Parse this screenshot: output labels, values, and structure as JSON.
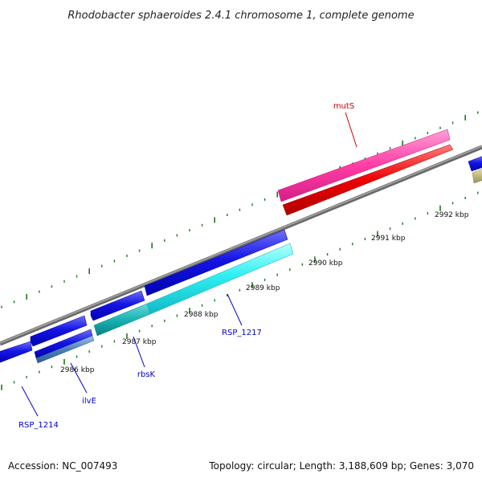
{
  "title": "Rhodobacter sphaeroides 2.4.1 chromosome 1, complete genome",
  "kbp_labels": [
    "2986 kbp",
    "2987 kbp",
    "2988 kbp",
    "2989 kbp",
    "2990 kbp",
    "2991 kbp",
    "2992 kbp"
  ],
  "gene_labels": [
    {
      "text": "mutS",
      "color": "#cc0000"
    },
    {
      "text": "RSP_1217",
      "color": "#0000cc"
    },
    {
      "text": "rbsK",
      "color": "#0000cc"
    },
    {
      "text": "ilvE",
      "color": "#0000cc"
    },
    {
      "text": "RSP_1214",
      "color": "#0000cc"
    }
  ],
  "colors": {
    "backbone": "#888888",
    "ticks": "#1a7a1a",
    "cds_blue": "#0a0adc",
    "cds_cyan": "#2ef0f0",
    "cds_teal": "#17b3b3",
    "cds_steel": "#4f7fb8",
    "cds_pink": "#ff3da5",
    "cds_red": "#ee0000",
    "cds_khaki": "#c0b87a"
  },
  "footer": {
    "accession": "Accession: NC_007493",
    "topology": "Topology: circular; Length: 3,188,609 bp; Genes: 3,070"
  }
}
